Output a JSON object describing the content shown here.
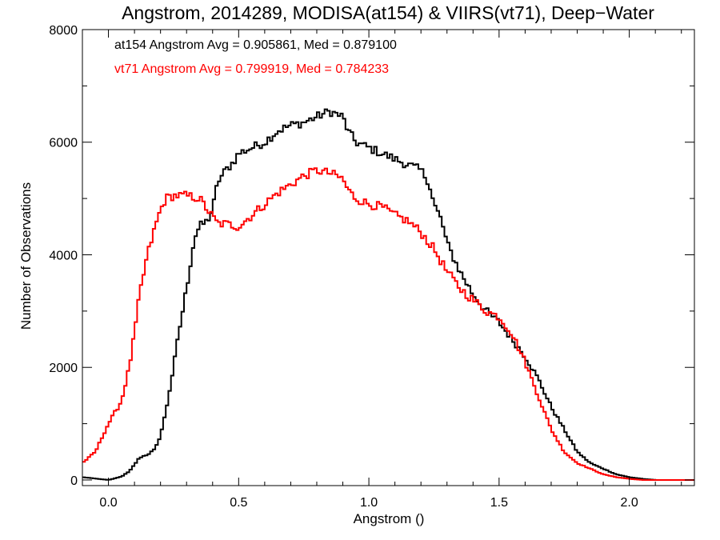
{
  "chart_data": {
    "type": "line",
    "step": true,
    "title": "Angstrom, 2014289, MODISA(at154) & VIIRS(vt71), Deep−Water",
    "xlabel": "Angstrom ()",
    "ylabel": "Number of Observations",
    "xlim": [
      -0.1,
      2.25
    ],
    "ylim": [
      -100,
      8000
    ],
    "xticks": [
      0.0,
      0.5,
      1.0,
      1.5,
      2.0
    ],
    "xtick_labels": [
      "0.0",
      "0.5",
      "1.0",
      "1.5",
      "2.0"
    ],
    "yticks": [
      0,
      2000,
      4000,
      6000,
      8000
    ],
    "ytick_labels": [
      "0",
      "2000",
      "4000",
      "6000",
      "8000"
    ],
    "grid": false,
    "annotations": [
      {
        "text": "at154 Angstrom Avg = 0.905861, Med = 0.879100",
        "color": "#000000"
      },
      {
        "text": "vt71 Angstrom Avg = 0.799919, Med = 0.784233",
        "color": "#ff0000"
      }
    ],
    "series": [
      {
        "color": "#000000",
        "points": [
          [
            -0.1,
            50
          ],
          [
            0.0,
            0
          ],
          [
            0.05,
            60
          ],
          [
            0.08,
            150
          ],
          [
            0.12,
            400
          ],
          [
            0.15,
            450
          ],
          [
            0.18,
            550
          ],
          [
            0.2,
            800
          ],
          [
            0.22,
            1200
          ],
          [
            0.25,
            2000
          ],
          [
            0.27,
            2600
          ],
          [
            0.3,
            3400
          ],
          [
            0.33,
            4300
          ],
          [
            0.35,
            4500
          ],
          [
            0.38,
            4600
          ],
          [
            0.4,
            4800
          ],
          [
            0.42,
            5300
          ],
          [
            0.45,
            5500
          ],
          [
            0.48,
            5650
          ],
          [
            0.5,
            5800
          ],
          [
            0.55,
            5900
          ],
          [
            0.6,
            6000
          ],
          [
            0.65,
            6200
          ],
          [
            0.7,
            6300
          ],
          [
            0.75,
            6350
          ],
          [
            0.8,
            6450
          ],
          [
            0.85,
            6550
          ],
          [
            0.9,
            6450
          ],
          [
            0.92,
            6200
          ],
          [
            0.95,
            6000
          ],
          [
            1.0,
            5900
          ],
          [
            1.05,
            5800
          ],
          [
            1.1,
            5700
          ],
          [
            1.15,
            5600
          ],
          [
            1.2,
            5500
          ],
          [
            1.23,
            5300
          ],
          [
            1.25,
            4900
          ],
          [
            1.28,
            4600
          ],
          [
            1.3,
            4200
          ],
          [
            1.33,
            3900
          ],
          [
            1.35,
            3700
          ],
          [
            1.4,
            3300
          ],
          [
            1.45,
            3000
          ],
          [
            1.5,
            2800
          ],
          [
            1.55,
            2500
          ],
          [
            1.6,
            2200
          ],
          [
            1.65,
            1800
          ],
          [
            1.7,
            1300
          ],
          [
            1.75,
            900
          ],
          [
            1.8,
            500
          ],
          [
            1.85,
            300
          ],
          [
            1.9,
            200
          ],
          [
            1.95,
            100
          ],
          [
            2.0,
            50
          ],
          [
            2.05,
            20
          ],
          [
            2.1,
            0
          ],
          [
            2.15,
            0
          ]
        ]
      },
      {
        "color": "#ff0000",
        "points": [
          [
            -0.1,
            300
          ],
          [
            -0.05,
            500
          ],
          [
            0.0,
            1000
          ],
          [
            0.05,
            1400
          ],
          [
            0.08,
            2000
          ],
          [
            0.1,
            2600
          ],
          [
            0.12,
            3300
          ],
          [
            0.15,
            4000
          ],
          [
            0.18,
            4500
          ],
          [
            0.2,
            4800
          ],
          [
            0.22,
            5000
          ],
          [
            0.25,
            5050
          ],
          [
            0.3,
            5050
          ],
          [
            0.35,
            5000
          ],
          [
            0.38,
            4800
          ],
          [
            0.42,
            4550
          ],
          [
            0.45,
            4550
          ],
          [
            0.5,
            4500
          ],
          [
            0.55,
            4700
          ],
          [
            0.6,
            4900
          ],
          [
            0.65,
            5100
          ],
          [
            0.7,
            5250
          ],
          [
            0.75,
            5400
          ],
          [
            0.8,
            5500
          ],
          [
            0.85,
            5450
          ],
          [
            0.9,
            5350
          ],
          [
            0.92,
            5150
          ],
          [
            0.95,
            5000
          ],
          [
            1.0,
            4900
          ],
          [
            1.05,
            4850
          ],
          [
            1.1,
            4700
          ],
          [
            1.15,
            4600
          ],
          [
            1.2,
            4400
          ],
          [
            1.25,
            4100
          ],
          [
            1.3,
            3700
          ],
          [
            1.35,
            3400
          ],
          [
            1.4,
            3200
          ],
          [
            1.45,
            3000
          ],
          [
            1.5,
            2900
          ],
          [
            1.55,
            2600
          ],
          [
            1.6,
            2100
          ],
          [
            1.65,
            1500
          ],
          [
            1.7,
            900
          ],
          [
            1.75,
            500
          ],
          [
            1.8,
            300
          ],
          [
            1.85,
            200
          ],
          [
            1.9,
            100
          ],
          [
            1.95,
            50
          ],
          [
            2.0,
            20
          ],
          [
            2.05,
            0
          ],
          [
            2.15,
            0
          ]
        ]
      }
    ]
  }
}
